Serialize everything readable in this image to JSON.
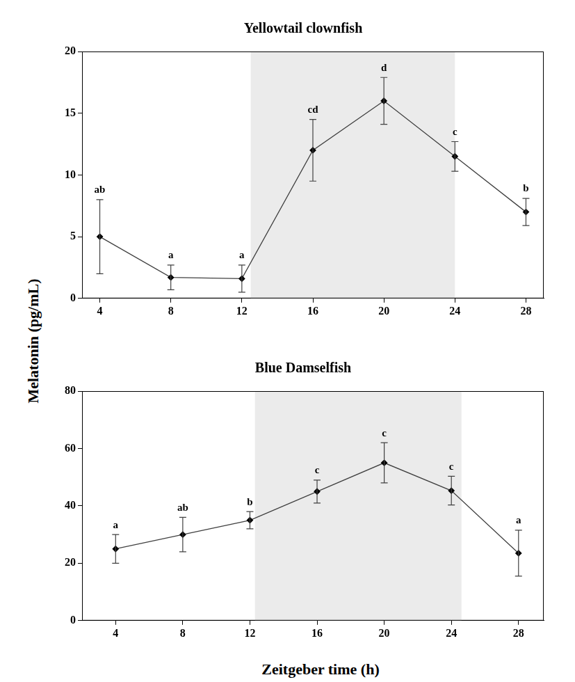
{
  "shared_y_label": "Melatonin (pg/mL)",
  "shared_x_label": "Zeitgeber time (h)",
  "chart_data": [
    {
      "type": "line",
      "title": "Yellowtail clownfish",
      "x": [
        4,
        8,
        12,
        16,
        20,
        24,
        28
      ],
      "values": [
        5,
        1.7,
        1.6,
        12,
        16,
        11.5,
        7
      ],
      "errors": [
        3,
        1,
        1.1,
        2.5,
        1.9,
        1.2,
        1.1
      ],
      "point_labels": [
        "ab",
        "a",
        "a",
        "cd",
        "d",
        "c",
        "b"
      ],
      "dark_period": [
        12.5,
        24
      ],
      "xlim": [
        3,
        29
      ],
      "xticks": [
        4,
        8,
        12,
        16,
        20,
        24,
        28
      ],
      "ylim": [
        0,
        20
      ],
      "yticks": [
        0,
        5,
        10,
        15,
        20
      ],
      "color": "#404040",
      "marker": "diamond",
      "line_style": "solid",
      "grid": false
    },
    {
      "type": "line",
      "title": "Blue Damselfish",
      "x": [
        4,
        8,
        12,
        16,
        20,
        24,
        28
      ],
      "values": [
        25,
        30,
        35,
        45,
        55,
        45.3,
        23.5
      ],
      "errors": [
        5,
        6,
        3,
        4,
        7,
        5,
        8
      ],
      "point_labels": [
        "a",
        "ab",
        "b",
        "c",
        "c",
        "c",
        "a"
      ],
      "dark_period": [
        12.3,
        24.6
      ],
      "xlim": [
        2,
        29.5
      ],
      "xticks": [
        4,
        8,
        12,
        16,
        20,
        24,
        28
      ],
      "ylim": [
        0,
        80
      ],
      "yticks": [
        0,
        20,
        40,
        60,
        80
      ],
      "color": "#404040",
      "marker": "diamond",
      "line_style": "solid",
      "grid": false
    }
  ]
}
